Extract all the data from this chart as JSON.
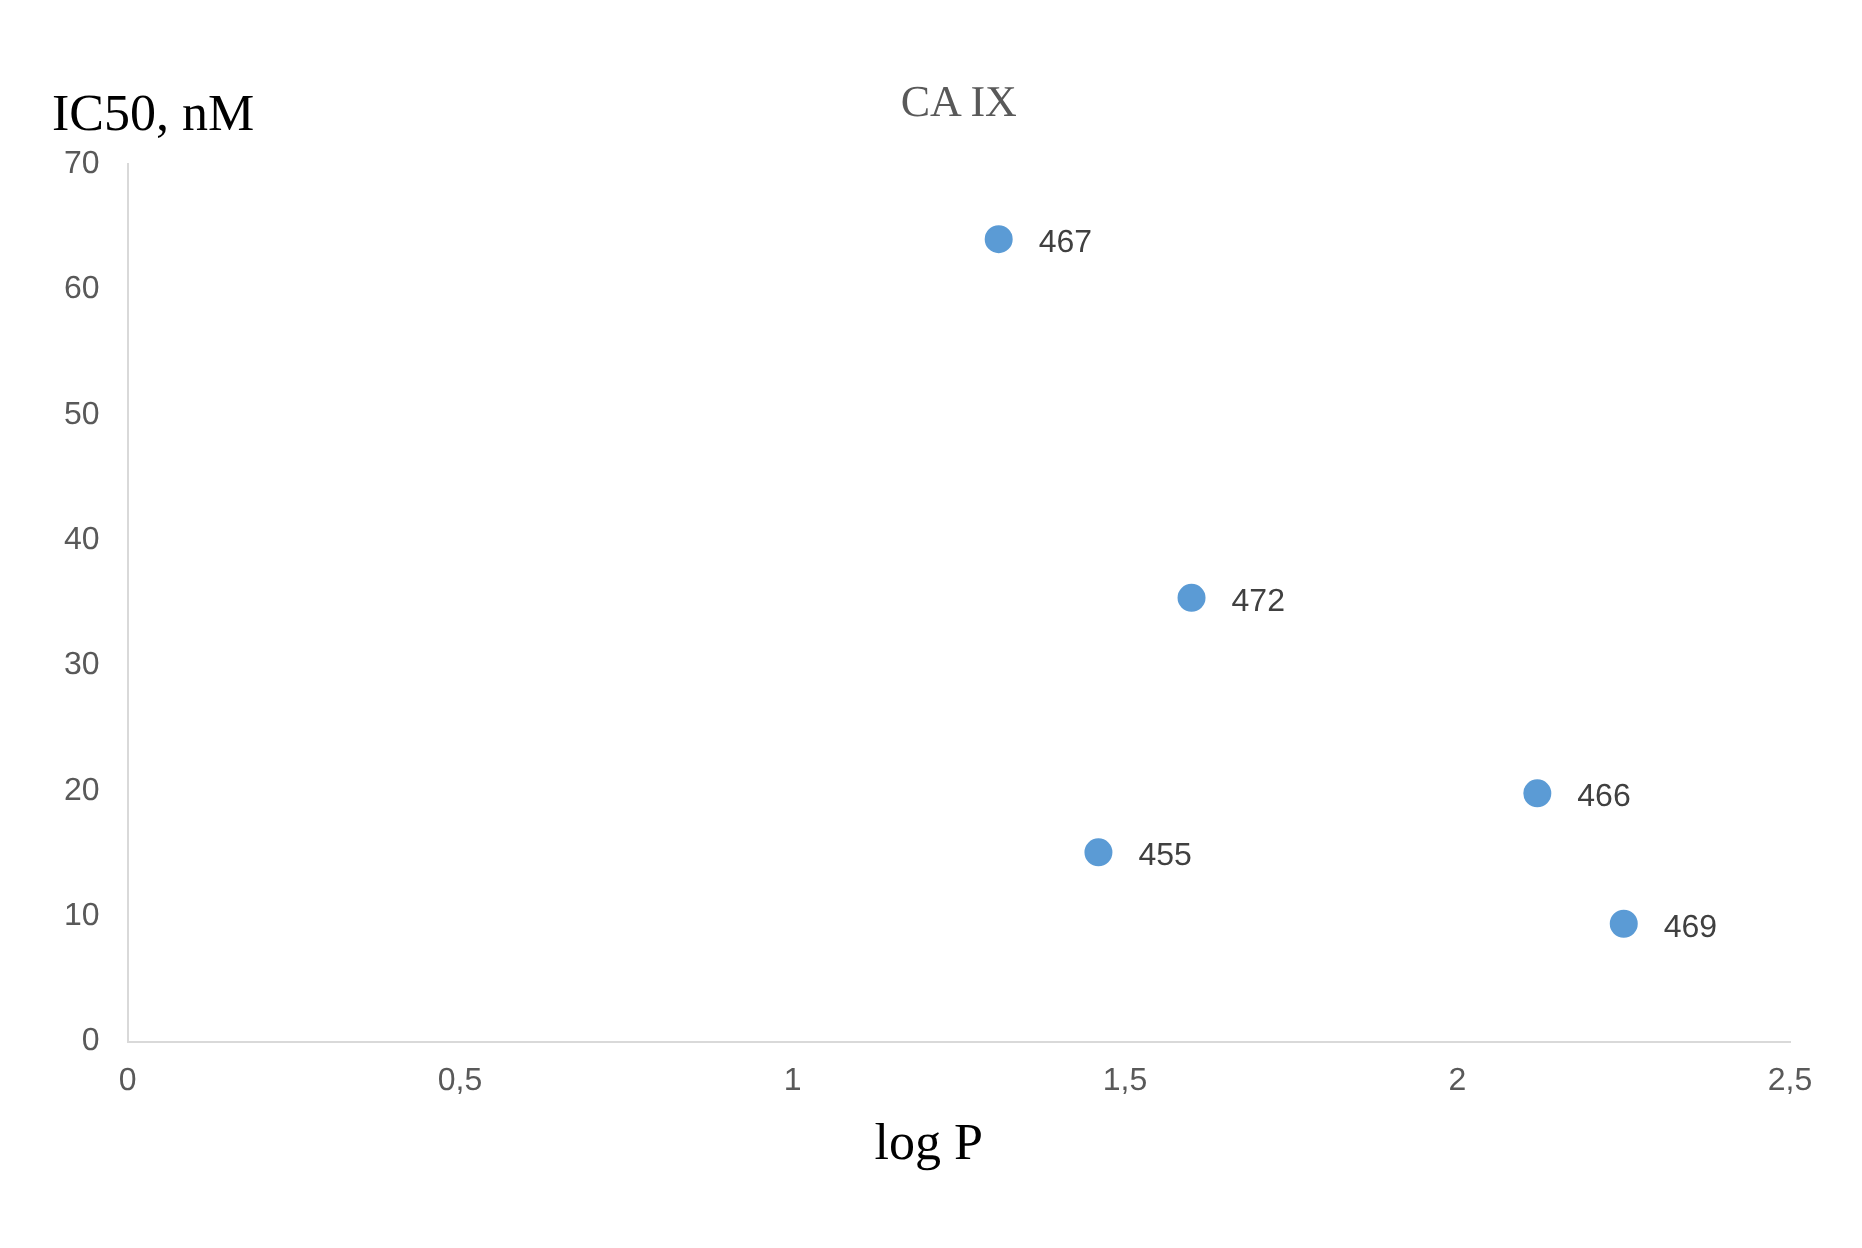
{
  "chart_data": {
    "type": "scatter",
    "title": "CA IX",
    "xlabel": "log P",
    "ylabel": "IC50, nM",
    "x": [
      1.31,
      1.6,
      2.12,
      1.46,
      2.25
    ],
    "series": [
      {
        "color": "#5b9bd5",
        "values": [
          64,
          35.4,
          19.8,
          15.1,
          9.4
        ]
      }
    ],
    "xlim": [
      0,
      2.5
    ],
    "xticks": [
      0,
      {
        "value": 0.5,
        "label": "0,5"
      },
      1,
      {
        "value": 1.5,
        "label": "1,5"
      },
      2,
      {
        "value": 2.5,
        "label": "2,5"
      }
    ],
    "ylim": [
      0,
      70
    ],
    "yticks": [
      0,
      10,
      20,
      30,
      40,
      50,
      60,
      70
    ],
    "grid": false,
    "legend": false,
    "marker": "circle",
    "annotations": [
      {
        "text": "467",
        "x": 1.31,
        "y": 64
      },
      {
        "text": "472",
        "x": 1.6,
        "y": 35.4
      },
      {
        "text": "466",
        "x": 2.12,
        "y": 19.8
      },
      {
        "text": "455",
        "x": 1.46,
        "y": 15.1
      },
      {
        "text": "469",
        "x": 2.25,
        "y": 9.4
      }
    ]
  }
}
